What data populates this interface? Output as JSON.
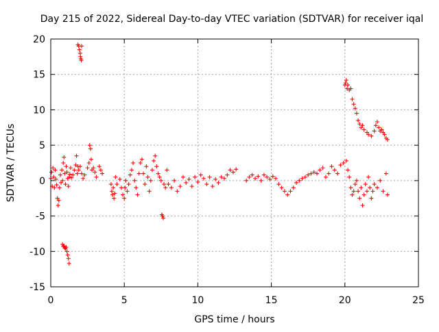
{
  "chart_data": {
    "type": "scatter",
    "title": "Day 215 of 2022, Sidereal Day-to-day VTEC variation (SDTVAR) for receiver iqal",
    "xlabel": "GPS time / hours",
    "ylabel": "SDTVAR / TECUs",
    "xlim": [
      0,
      25
    ],
    "ylim": [
      -15,
      20
    ],
    "xticks": [
      "0",
      "5",
      "10",
      "15",
      "20",
      "25"
    ],
    "yticks": [
      "-15",
      "-10",
      "-5",
      "0",
      "5",
      "10",
      "15",
      "20"
    ],
    "grid": true,
    "marker": "+",
    "series": [
      {
        "name": "SDTVAR",
        "color": "#ff0000",
        "points": [
          [
            0.0,
            0.3
          ],
          [
            0.05,
            1.2
          ],
          [
            0.1,
            -0.8
          ],
          [
            0.15,
            1.8
          ],
          [
            0.2,
            0.5
          ],
          [
            0.25,
            -1.0
          ],
          [
            0.3,
            1.5
          ],
          [
            0.35,
            0.2
          ],
          [
            0.4,
            -0.6
          ],
          [
            0.45,
            -2.5
          ],
          [
            0.5,
            -3.5
          ],
          [
            0.55,
            -2.8
          ],
          [
            0.6,
            -1.0
          ],
          [
            0.65,
            0.8
          ],
          [
            0.7,
            -0.3
          ],
          [
            0.75,
            1.5
          ],
          [
            0.8,
            0.0
          ],
          [
            0.85,
            2.5
          ],
          [
            0.9,
            3.3
          ],
          [
            0.95,
            1.0
          ],
          [
            1.0,
            -0.5
          ],
          [
            1.05,
            2.0
          ],
          [
            1.1,
            1.2
          ],
          [
            1.15,
            0.3
          ],
          [
            1.2,
            -0.8
          ],
          [
            1.25,
            0.5
          ],
          [
            1.3,
            0.9
          ],
          [
            1.35,
            1.8
          ],
          [
            1.4,
            0.4
          ],
          [
            1.5,
            0.8
          ],
          [
            1.6,
            1.5
          ],
          [
            1.7,
            2.2
          ],
          [
            1.75,
            3.5
          ],
          [
            1.8,
            1.0
          ],
          [
            1.85,
            2.0
          ],
          [
            1.9,
            1.5
          ],
          [
            2.0,
            2.0
          ],
          [
            2.1,
            1.0
          ],
          [
            2.2,
            0.3
          ],
          [
            2.3,
            0.8
          ],
          [
            2.5,
            1.8
          ],
          [
            2.6,
            2.5
          ],
          [
            2.65,
            5.0
          ],
          [
            2.7,
            4.5
          ],
          [
            2.75,
            3.0
          ],
          [
            2.8,
            1.5
          ],
          [
            2.9,
            1.8
          ],
          [
            3.0,
            1.2
          ],
          [
            3.1,
            0.5
          ],
          [
            3.3,
            2.0
          ],
          [
            3.4,
            1.5
          ],
          [
            3.5,
            1.0
          ],
          [
            0.8,
            -9.0
          ],
          [
            0.85,
            -9.3
          ],
          [
            0.9,
            -9.2
          ],
          [
            0.95,
            -9.5
          ],
          [
            1.0,
            -9.6
          ],
          [
            1.05,
            -9.4
          ],
          [
            1.1,
            -10.0
          ],
          [
            1.15,
            -10.5
          ],
          [
            1.2,
            -11.0
          ],
          [
            1.25,
            -11.7
          ],
          [
            1.85,
            19.2
          ],
          [
            1.9,
            19.0
          ],
          [
            1.95,
            18.5
          ],
          [
            2.0,
            18.0
          ],
          [
            2.02,
            17.5
          ],
          [
            2.05,
            17.2
          ],
          [
            2.1,
            19.0
          ],
          [
            2.08,
            17.0
          ],
          [
            4.1,
            -0.5
          ],
          [
            4.15,
            -1.5
          ],
          [
            4.2,
            -2.0
          ],
          [
            4.25,
            -1.0
          ],
          [
            4.3,
            -2.5
          ],
          [
            4.35,
            -1.8
          ],
          [
            4.4,
            0.5
          ],
          [
            4.5,
            -0.5
          ],
          [
            4.7,
            0.2
          ],
          [
            4.8,
            -1.0
          ],
          [
            4.9,
            -2.0
          ],
          [
            5.0,
            -2.5
          ],
          [
            5.05,
            -1.0
          ],
          [
            5.1,
            0.0
          ],
          [
            5.2,
            -1.5
          ],
          [
            5.3,
            -0.5
          ],
          [
            5.4,
            0.8
          ],
          [
            5.5,
            1.5
          ],
          [
            5.6,
            2.5
          ],
          [
            5.7,
            0.0
          ],
          [
            5.8,
            -1.0
          ],
          [
            5.9,
            -2.0
          ],
          [
            6.0,
            1.0
          ],
          [
            6.1,
            2.5
          ],
          [
            6.2,
            3.0
          ],
          [
            6.3,
            1.0
          ],
          [
            6.4,
            -0.5
          ],
          [
            6.5,
            2.0
          ],
          [
            6.6,
            0.5
          ],
          [
            6.7,
            -1.5
          ],
          [
            6.8,
            0.0
          ],
          [
            6.9,
            1.5
          ],
          [
            7.0,
            2.8
          ],
          [
            7.1,
            3.5
          ],
          [
            7.2,
            2.0
          ],
          [
            7.3,
            1.0
          ],
          [
            7.4,
            0.5
          ],
          [
            7.5,
            0.0
          ],
          [
            7.55,
            -4.8
          ],
          [
            7.6,
            -5.0
          ],
          [
            7.65,
            -5.3
          ],
          [
            7.7,
            -0.5
          ],
          [
            7.8,
            -1.0
          ],
          [
            7.9,
            1.5
          ],
          [
            8.0,
            -0.5
          ],
          [
            8.2,
            -1.0
          ],
          [
            8.4,
            0.0
          ],
          [
            8.6,
            -1.5
          ],
          [
            8.8,
            -0.8
          ],
          [
            9.0,
            0.5
          ],
          [
            9.2,
            -0.3
          ],
          [
            9.4,
            0.2
          ],
          [
            9.6,
            -0.8
          ],
          [
            9.8,
            0.5
          ],
          [
            10.0,
            -0.2
          ],
          [
            10.2,
            0.8
          ],
          [
            10.4,
            0.3
          ],
          [
            10.6,
            -0.5
          ],
          [
            10.8,
            0.5
          ],
          [
            11.0,
            -0.8
          ],
          [
            11.2,
            0.2
          ],
          [
            11.4,
            -0.3
          ],
          [
            11.6,
            0.5
          ],
          [
            11.8,
            0.3
          ],
          [
            12.0,
            0.8
          ],
          [
            12.2,
            1.5
          ],
          [
            12.4,
            1.2
          ],
          [
            12.6,
            1.6
          ],
          [
            13.3,
            0.0
          ],
          [
            13.5,
            0.5
          ],
          [
            13.7,
            0.8
          ],
          [
            13.9,
            0.3
          ],
          [
            14.1,
            0.6
          ],
          [
            14.3,
            0.0
          ],
          [
            14.5,
            0.8
          ],
          [
            14.7,
            0.5
          ],
          [
            14.9,
            0.2
          ],
          [
            15.1,
            0.6
          ],
          [
            15.3,
            0.3
          ],
          [
            15.5,
            -0.5
          ],
          [
            15.7,
            -1.0
          ],
          [
            15.9,
            -1.5
          ],
          [
            16.1,
            -2.0
          ],
          [
            16.3,
            -1.5
          ],
          [
            16.5,
            -1.0
          ],
          [
            16.7,
            -0.3
          ],
          [
            16.9,
            0.0
          ],
          [
            17.1,
            0.3
          ],
          [
            17.3,
            0.5
          ],
          [
            17.5,
            0.8
          ],
          [
            17.7,
            1.0
          ],
          [
            17.9,
            1.2
          ],
          [
            18.1,
            1.0
          ],
          [
            18.3,
            1.5
          ],
          [
            18.5,
            1.8
          ],
          [
            18.7,
            0.5
          ],
          [
            18.9,
            1.0
          ],
          [
            19.1,
            2.0
          ],
          [
            19.3,
            1.5
          ],
          [
            19.5,
            1.0
          ],
          [
            19.7,
            2.2
          ],
          [
            19.9,
            2.5
          ],
          [
            20.1,
            2.8
          ],
          [
            20.2,
            1.5
          ],
          [
            20.3,
            0.5
          ],
          [
            20.4,
            -1.0
          ],
          [
            20.5,
            -2.0
          ],
          [
            20.6,
            -1.5
          ],
          [
            20.7,
            -0.5
          ],
          [
            20.8,
            0.0
          ],
          [
            20.9,
            -1.5
          ],
          [
            21.0,
            -2.5
          ],
          [
            21.1,
            -1.0
          ],
          [
            21.2,
            -3.5
          ],
          [
            21.3,
            -2.0
          ],
          [
            21.4,
            -0.5
          ],
          [
            21.5,
            -1.5
          ],
          [
            21.6,
            0.5
          ],
          [
            21.7,
            -1.0
          ],
          [
            21.8,
            -2.5
          ],
          [
            21.9,
            -1.5
          ],
          [
            22.0,
            -0.5
          ],
          [
            22.2,
            -1.0
          ],
          [
            22.4,
            0.0
          ],
          [
            22.6,
            -1.5
          ],
          [
            22.8,
            1.0
          ],
          [
            22.9,
            -2.0
          ],
          [
            20.0,
            13.5
          ],
          [
            20.05,
            13.8
          ],
          [
            20.1,
            14.2
          ],
          [
            20.15,
            13.0
          ],
          [
            20.2,
            13.5
          ],
          [
            20.3,
            12.8
          ],
          [
            20.4,
            13.0
          ],
          [
            20.5,
            11.5
          ],
          [
            20.6,
            10.8
          ],
          [
            20.7,
            10.2
          ],
          [
            20.8,
            9.5
          ],
          [
            20.9,
            8.5
          ],
          [
            21.0,
            8.0
          ],
          [
            21.1,
            7.5
          ],
          [
            21.2,
            7.8
          ],
          [
            21.3,
            7.2
          ],
          [
            21.5,
            6.8
          ],
          [
            21.6,
            6.5
          ],
          [
            21.8,
            6.3
          ],
          [
            22.0,
            7.0
          ],
          [
            22.1,
            7.8
          ],
          [
            22.2,
            8.3
          ],
          [
            22.3,
            7.5
          ],
          [
            22.4,
            7.0
          ],
          [
            22.5,
            7.2
          ],
          [
            22.6,
            6.8
          ],
          [
            22.7,
            6.5
          ],
          [
            22.8,
            6.0
          ],
          [
            22.9,
            5.8
          ]
        ]
      }
    ]
  }
}
